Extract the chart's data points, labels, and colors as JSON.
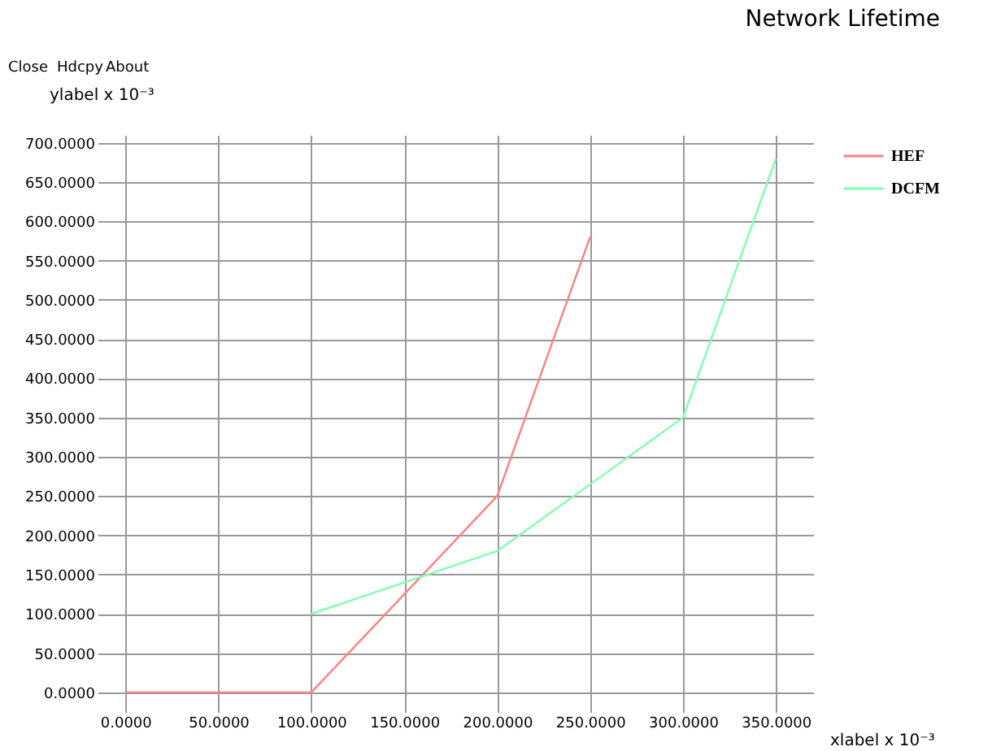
{
  "chart_data": {
    "type": "line",
    "title": "Network Lifetime",
    "ylabel": "ylabel x 10⁻³",
    "xlabel": "xlabel x 10⁻³",
    "annotations": [
      "Close",
      "Hdcpy",
      "About"
    ],
    "series": [
      {
        "name": "HEF",
        "color": "#ff8080",
        "x": [
          0,
          50,
          100,
          150,
          200,
          250
        ],
        "values": [
          0,
          0,
          0,
          125,
          250,
          580
        ]
      },
      {
        "name": "DCFM",
        "color": "#80ffb0",
        "x": [
          100,
          150,
          200,
          250,
          300,
          350
        ],
        "values": [
          100,
          140,
          180,
          265,
          350,
          680
        ]
      }
    ],
    "xlim": [
      -15,
      370
    ],
    "ylim": [
      -25,
      710
    ],
    "xticks": [
      {
        "value": 0,
        "label": "0.0000"
      },
      {
        "value": 50,
        "label": "50.0000"
      },
      {
        "value": 100,
        "label": "100.0000"
      },
      {
        "value": 150,
        "label": "150.0000"
      },
      {
        "value": 200,
        "label": "200.0000"
      },
      {
        "value": 250,
        "label": "250.0000"
      },
      {
        "value": 300,
        "label": "300.0000"
      },
      {
        "value": 350,
        "label": "350.0000"
      }
    ],
    "yticks": [
      {
        "value": 0,
        "label": "0.0000"
      },
      {
        "value": 50,
        "label": "50.0000"
      },
      {
        "value": 100,
        "label": "100.0000"
      },
      {
        "value": 150,
        "label": "150.0000"
      },
      {
        "value": 200,
        "label": "200.0000"
      },
      {
        "value": 250,
        "label": "250.0000"
      },
      {
        "value": 300,
        "label": "300.0000"
      },
      {
        "value": 350,
        "label": "350.0000"
      },
      {
        "value": 400,
        "label": "400.0000"
      },
      {
        "value": 450,
        "label": "450.0000"
      },
      {
        "value": 500,
        "label": "500.0000"
      },
      {
        "value": 550,
        "label": "550.0000"
      },
      {
        "value": 600,
        "label": "600.0000"
      },
      {
        "value": 650,
        "label": "650.0000"
      },
      {
        "value": 700,
        "label": "700.0000"
      }
    ],
    "grid": true,
    "legend": "top right",
    "marker": "none",
    "line_style": "solid"
  }
}
